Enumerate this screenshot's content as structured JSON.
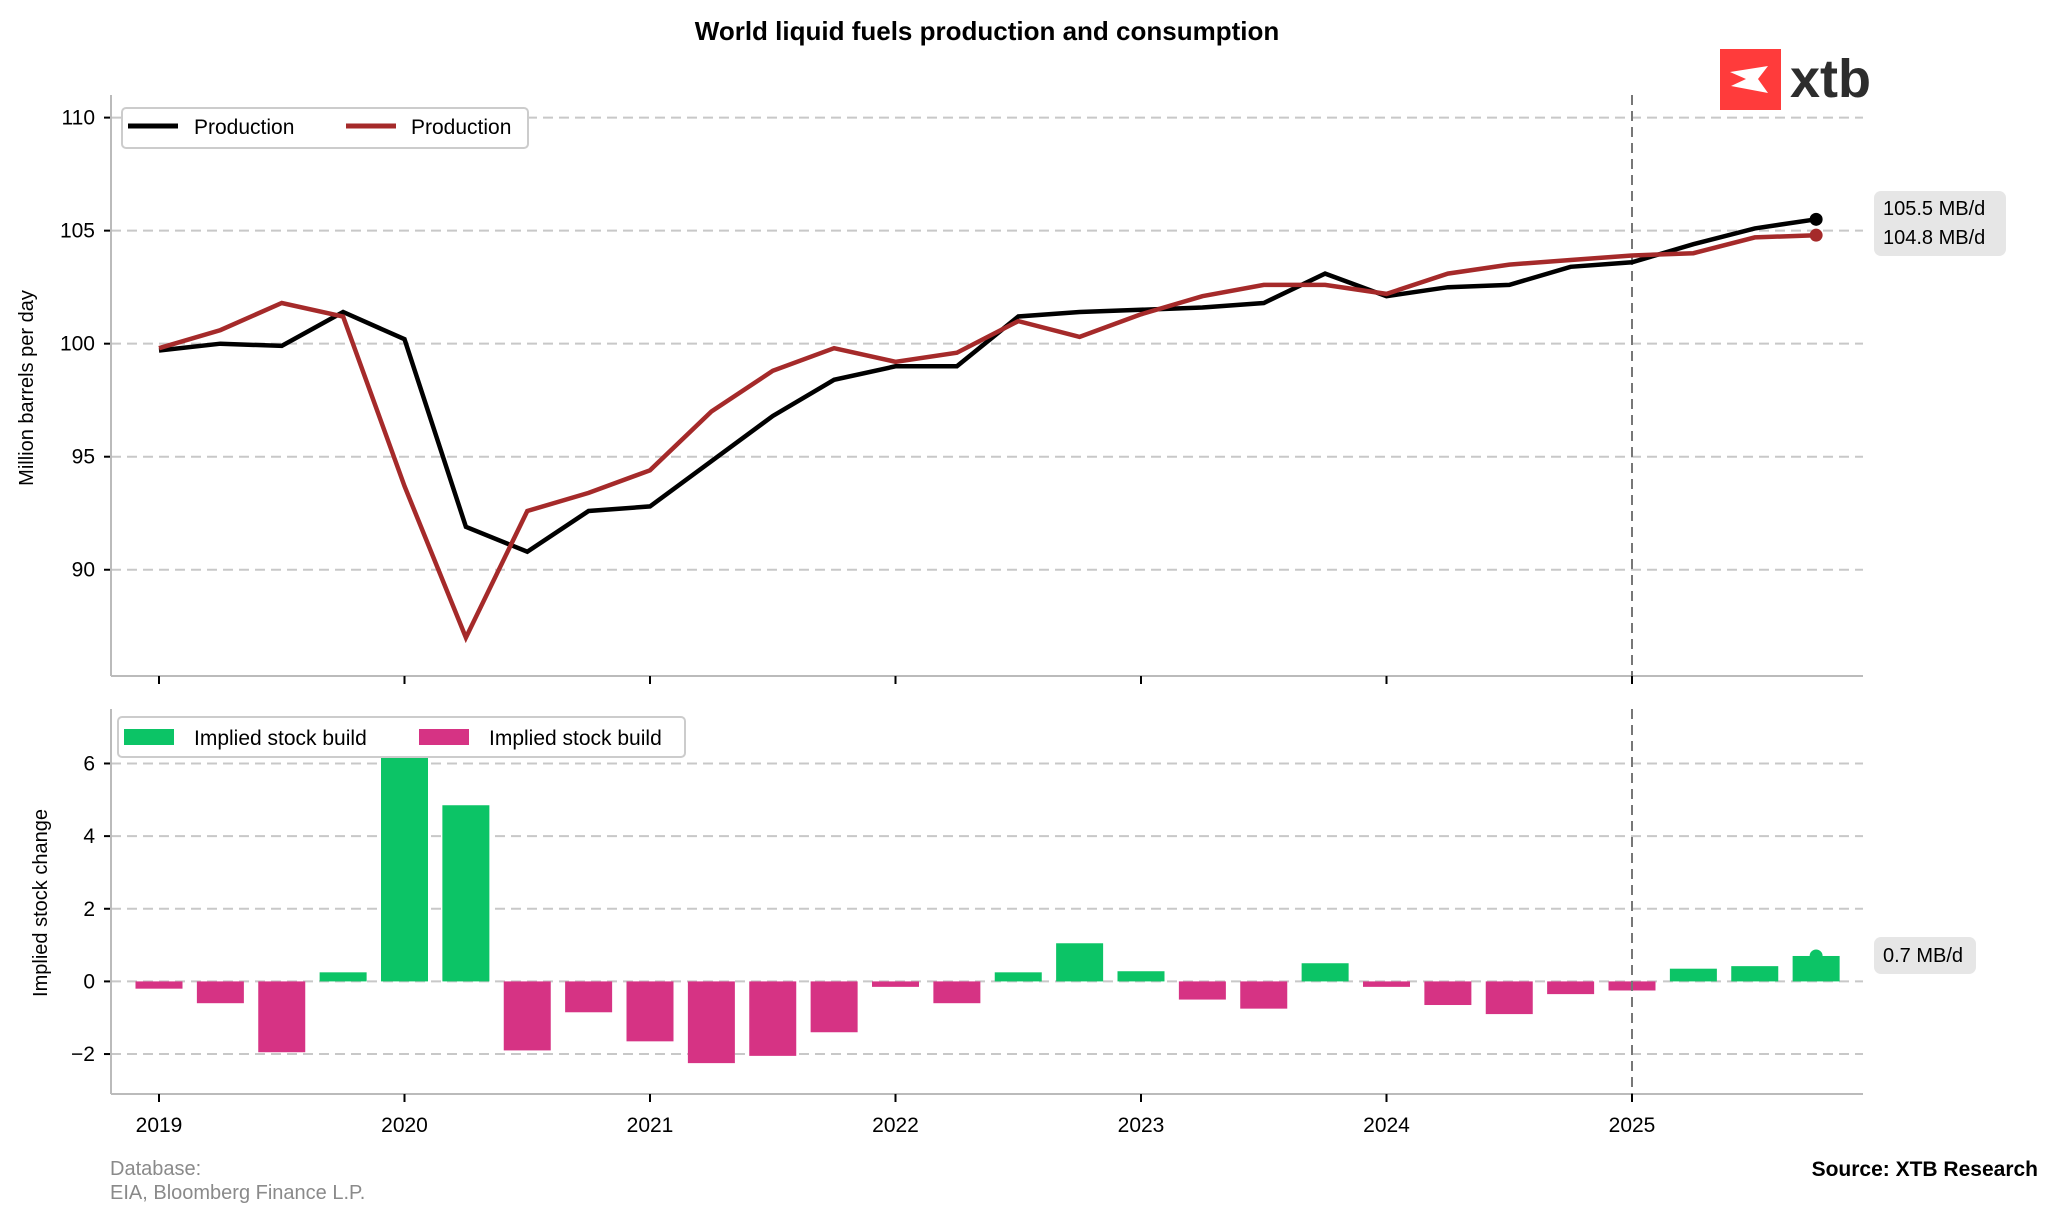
{
  "title": "World liquid fuels production and consumption",
  "logo": {
    "text": "xtb",
    "icon": "xtb-logo-icon",
    "color": "#ff3b3b"
  },
  "footer": {
    "database_label": "Database:",
    "database_sources": "EIA, Bloomberg Finance L.P.",
    "source": "Source: XTB Research"
  },
  "colors": {
    "production": "#000000",
    "consumption": "#a52a2a",
    "positive_bar": "#0cc466",
    "negative_bar": "#d63384",
    "grid": "#c8c8c8",
    "forecast_line": "#777777",
    "badge_bg": "#e6e6e6"
  },
  "chart_data": [
    {
      "type": "line",
      "title": "World liquid fuels production and consumption",
      "xlabel": "",
      "ylabel": "Million barrels per day",
      "ylim": [
        85.3,
        111
      ],
      "yticks": [
        90,
        95,
        100,
        105,
        110
      ],
      "xticks": [
        "2019",
        "2020",
        "2021",
        "2022",
        "2023",
        "2024",
        "2025"
      ],
      "grid": "horizontal-dashed",
      "legend_position": "top-left",
      "forecast_divider_at": "2025",
      "x": [
        "2019Q1",
        "2019Q2",
        "2019Q3",
        "2019Q4",
        "2020Q1",
        "2020Q2",
        "2020Q3",
        "2020Q4",
        "2021Q1",
        "2021Q2",
        "2021Q3",
        "2021Q4",
        "2022Q1",
        "2022Q2",
        "2022Q3",
        "2022Q4",
        "2023Q1",
        "2023Q2",
        "2023Q3",
        "2023Q4",
        "2024Q1",
        "2024Q2",
        "2024Q3",
        "2024Q4",
        "2025Q1",
        "2025Q2",
        "2025Q3",
        "2025Q4"
      ],
      "series": [
        {
          "name": "Production",
          "color": "#000000",
          "values": [
            99.7,
            100.0,
            99.9,
            101.4,
            100.2,
            91.9,
            90.8,
            92.6,
            92.8,
            94.8,
            96.8,
            98.4,
            99.0,
            99.0,
            101.2,
            101.4,
            101.5,
            101.6,
            101.8,
            103.1,
            102.1,
            102.5,
            102.6,
            103.4,
            103.6,
            104.4,
            105.1,
            105.5
          ],
          "end_label": "105.5 MB/d"
        },
        {
          "name": "Production",
          "color": "#a52a2a",
          "values": [
            99.8,
            100.6,
            101.8,
            101.2,
            93.7,
            87.0,
            92.6,
            93.4,
            94.4,
            97.0,
            98.8,
            99.8,
            99.2,
            99.6,
            101.0,
            100.3,
            101.3,
            102.1,
            102.6,
            102.6,
            102.2,
            103.1,
            103.5,
            103.7,
            103.9,
            104.0,
            104.7,
            104.8
          ],
          "end_label": "104.8 MB/d"
        }
      ]
    },
    {
      "type": "bar",
      "title": "",
      "xlabel": "",
      "ylabel": "Implied stock change",
      "ylim": [
        -3.1,
        7.5
      ],
      "yticks": [
        -2,
        0,
        2,
        4,
        6
      ],
      "xticks": [
        "2019",
        "2020",
        "2021",
        "2022",
        "2023",
        "2024",
        "2025"
      ],
      "grid": "horizontal-dashed",
      "legend_position": "top-left",
      "legend": [
        {
          "name": "Implied stock build",
          "color": "#0cc466"
        },
        {
          "name": "Implied stock build",
          "color": "#d63384"
        }
      ],
      "forecast_divider_at": "2025",
      "categories": [
        "2019Q1",
        "2019Q2",
        "2019Q3",
        "2019Q4",
        "2020Q1",
        "2020Q2",
        "2020Q3",
        "2020Q4",
        "2021Q1",
        "2021Q2",
        "2021Q3",
        "2021Q4",
        "2022Q1",
        "2022Q2",
        "2022Q3",
        "2022Q4",
        "2023Q1",
        "2023Q2",
        "2023Q3",
        "2023Q4",
        "2024Q1",
        "2024Q2",
        "2024Q3",
        "2024Q4",
        "2025Q1",
        "2025Q2",
        "2025Q3",
        "2025Q4"
      ],
      "values": [
        -0.2,
        -0.6,
        -1.95,
        0.25,
        6.5,
        4.85,
        -1.9,
        -0.85,
        -1.65,
        -2.25,
        -2.05,
        -1.4,
        -0.15,
        -0.6,
        0.25,
        1.05,
        0.28,
        -0.5,
        -0.75,
        0.5,
        -0.15,
        -0.65,
        -0.9,
        -0.35,
        -0.25,
        0.35,
        0.42,
        0.7
      ],
      "end_label": "0.7 MB/d"
    }
  ]
}
